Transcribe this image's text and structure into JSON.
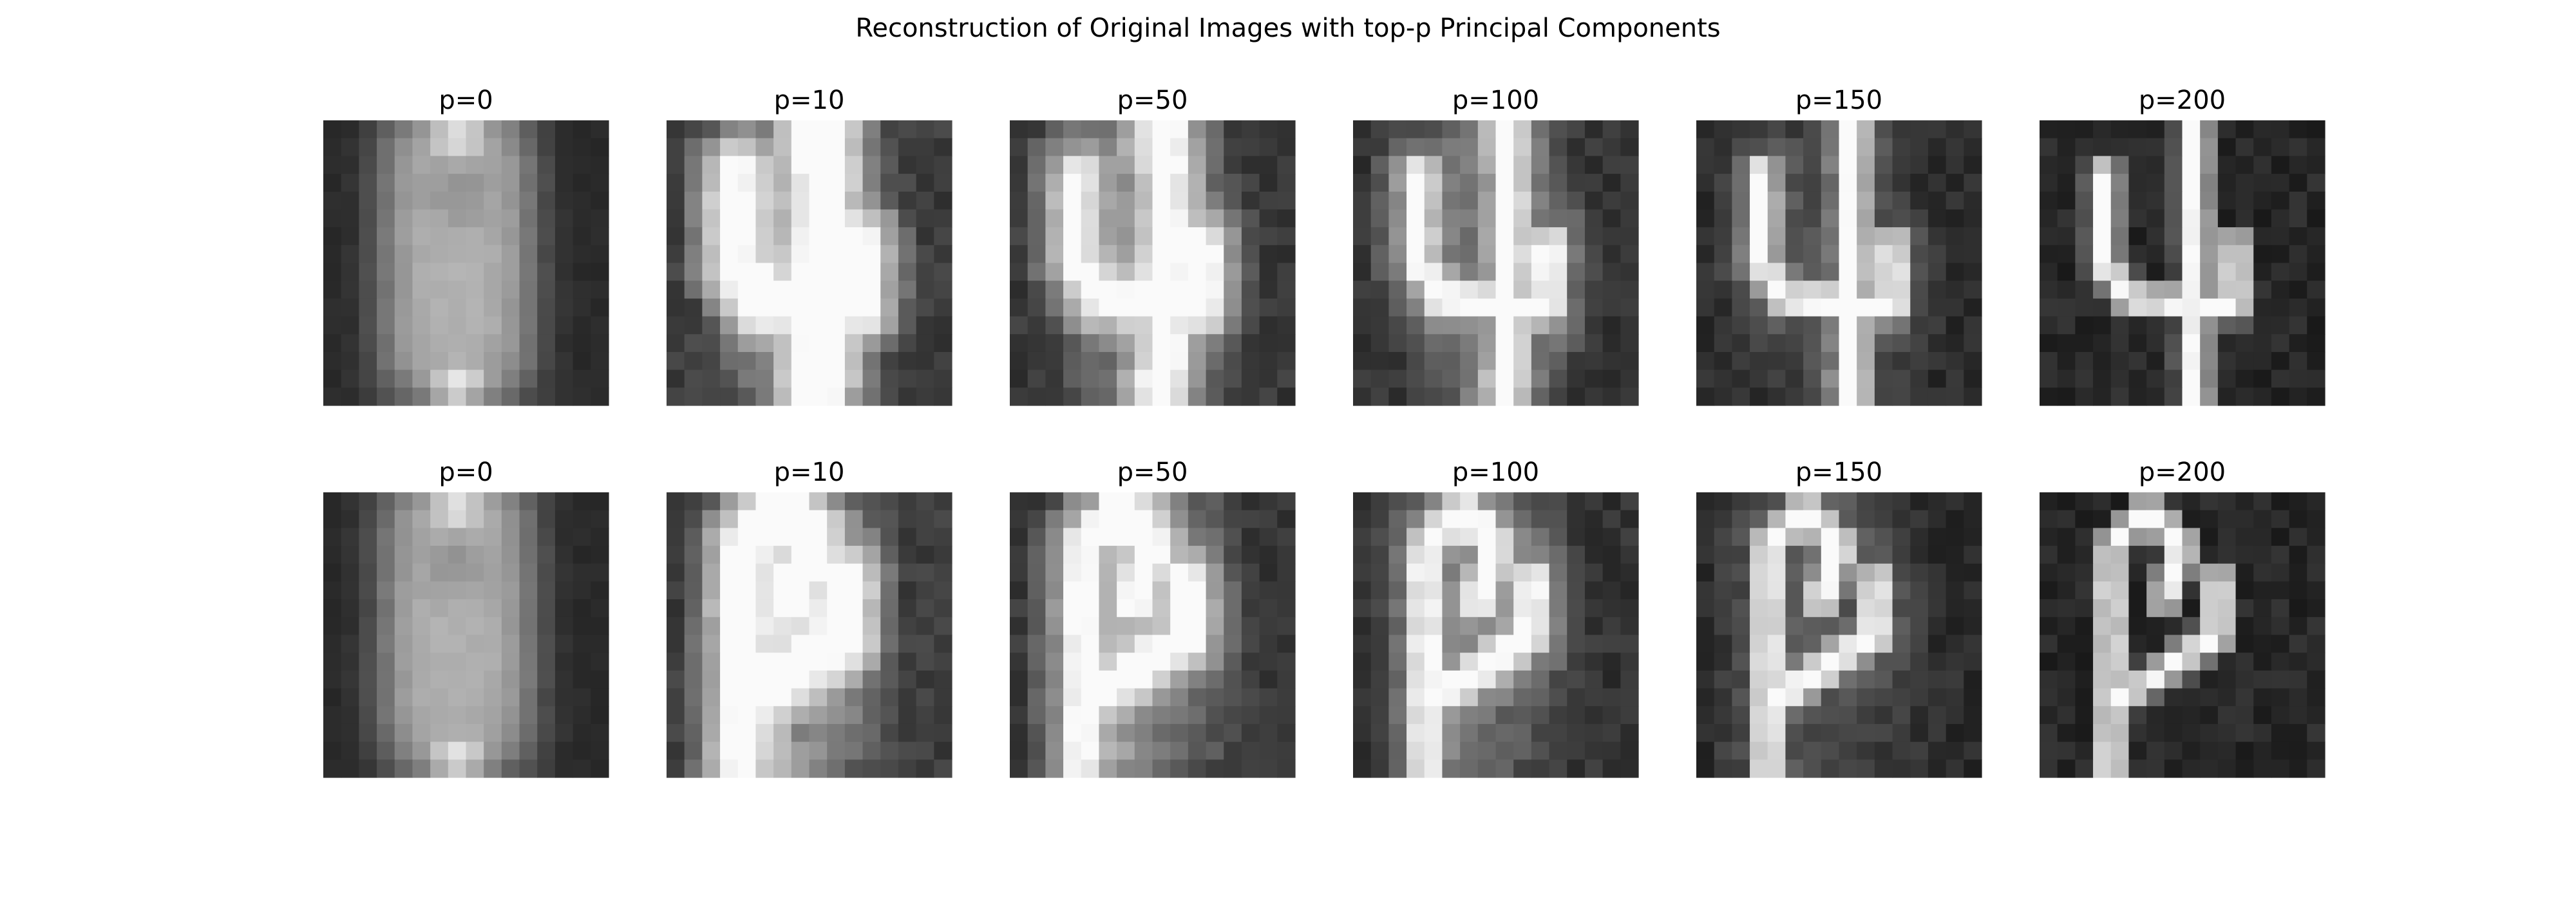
{
  "figure": {
    "title": "Reconstruction of Original Images with top-p Principal Components"
  },
  "chart_data": {
    "type": "heatmap",
    "colormap": "grayscale",
    "grid": false,
    "axes_visible": false,
    "image_resolution": 16,
    "title": "Reconstruction of Original Images with top-p Principal Components",
    "rows": [
      {
        "digit_shape": "four",
        "panels": [
          {
            "label": "p=0",
            "p": 0
          },
          {
            "label": "p=10",
            "p": 10
          },
          {
            "label": "p=50",
            "p": 50
          },
          {
            "label": "p=100",
            "p": 100
          },
          {
            "label": "p=150",
            "p": 150
          },
          {
            "label": "p=200",
            "p": 200
          }
        ]
      },
      {
        "digit_shape": "four-variant",
        "panels": [
          {
            "label": "p=0",
            "p": 0
          },
          {
            "label": "p=10",
            "p": 10
          },
          {
            "label": "p=50",
            "p": 50
          },
          {
            "label": "p=100",
            "p": 100
          },
          {
            "label": "p=150",
            "p": 150
          },
          {
            "label": "p=200",
            "p": 200
          }
        ]
      }
    ]
  }
}
